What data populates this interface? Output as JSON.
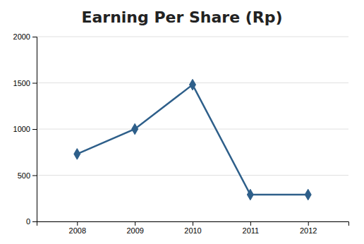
{
  "chart_data": {
    "type": "line",
    "title": "Earning Per Share (Rp)",
    "x": [
      2008,
      2009,
      2010,
      2011,
      2012
    ],
    "values": [
      730,
      1000,
      1480,
      290,
      290
    ],
    "color": "#2E5F8A",
    "marker": "diamond",
    "xlim": [
      2007.3,
      2012.7
    ],
    "xticks": [
      2008,
      2009,
      2010,
      2011,
      2012
    ],
    "ylim": [
      0,
      2000
    ],
    "yticks": [
      0,
      500,
      1000,
      1500,
      2000
    ],
    "grid": "y"
  }
}
